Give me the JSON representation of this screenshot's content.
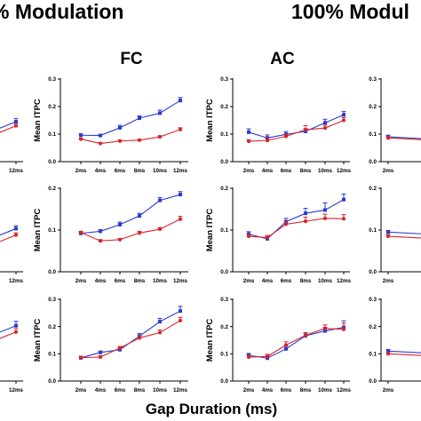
{
  "figure": {
    "headings": {
      "left": "% Modulation",
      "right": "100% Modul",
      "col_fc": "FC",
      "col_ac": "AC",
      "xlabel": "Gap Duration (ms)"
    }
  },
  "colors": {
    "blue": "#2a3bd0",
    "red": "#d6262b"
  },
  "chart_data": [
    {
      "type": "line",
      "panel": "FC-row1",
      "ylabel": "Mean ITPC",
      "categories": [
        "2ms",
        "4ms",
        "6ms",
        "8ms",
        "10ms",
        "12ms"
      ],
      "yticks": [
        0.0,
        0.1,
        0.2,
        0.3
      ],
      "ylim": [
        0,
        0.3
      ],
      "series": [
        {
          "color": "blue",
          "values": [
            0.096,
            0.095,
            0.123,
            0.158,
            0.176,
            0.222
          ],
          "err": [
            0.005,
            0.004,
            0.009,
            0.008,
            0.011,
            0.011
          ]
        },
        {
          "color": "red",
          "values": [
            0.082,
            0.066,
            0.075,
            0.078,
            0.09,
            0.117
          ],
          "err": [
            0.003,
            0.003,
            0.003,
            0.003,
            0.004,
            0.006
          ]
        }
      ]
    },
    {
      "type": "line",
      "panel": "AC-row1",
      "ylabel": "Mean ITPC",
      "categories": [
        "2ms",
        "4ms",
        "6ms",
        "8ms",
        "10ms",
        "12ms"
      ],
      "yticks": [
        0.0,
        0.1,
        0.2,
        0.3
      ],
      "ylim": [
        0,
        0.3
      ],
      "series": [
        {
          "color": "blue",
          "values": [
            0.107,
            0.086,
            0.099,
            0.11,
            0.141,
            0.17
          ],
          "err": [
            0.012,
            0.011,
            0.01,
            0.01,
            0.013,
            0.012
          ]
        },
        {
          "color": "red",
          "values": [
            0.074,
            0.077,
            0.092,
            0.116,
            0.122,
            0.15
          ],
          "err": [
            0.006,
            0.009,
            0.007,
            0.015,
            0.01,
            0.01
          ]
        }
      ]
    },
    {
      "type": "line",
      "panel": "FC-row2",
      "ylabel": "Mean ITPC",
      "categories": [
        "2ms",
        "4ms",
        "6ms",
        "8ms",
        "10ms",
        "12ms"
      ],
      "yticks": [
        0.0,
        0.1,
        0.2
      ],
      "ylim": [
        0,
        0.2
      ],
      "series": [
        {
          "color": "blue",
          "values": [
            0.092,
            0.097,
            0.113,
            0.134,
            0.171,
            0.185
          ],
          "err": [
            0.003,
            0.004,
            0.006,
            0.006,
            0.007,
            0.007
          ]
        },
        {
          "color": "red",
          "values": [
            0.094,
            0.074,
            0.077,
            0.093,
            0.102,
            0.126
          ],
          "err": [
            0.003,
            0.003,
            0.003,
            0.004,
            0.004,
            0.007
          ]
        }
      ]
    },
    {
      "type": "line",
      "panel": "AC-row2",
      "ylabel": "Mean ITPC",
      "categories": [
        "2ms",
        "4ms",
        "6ms",
        "8ms",
        "10ms",
        "12ms"
      ],
      "yticks": [
        0.0,
        0.1,
        0.2
      ],
      "ylim": [
        0,
        0.2
      ],
      "series": [
        {
          "color": "blue",
          "values": [
            0.09,
            0.079,
            0.12,
            0.14,
            0.148,
            0.173
          ],
          "err": [
            0.006,
            0.005,
            0.008,
            0.012,
            0.017,
            0.013
          ]
        },
        {
          "color": "red",
          "values": [
            0.085,
            0.082,
            0.114,
            0.121,
            0.128,
            0.127
          ],
          "err": [
            0.005,
            0.005,
            0.008,
            0.01,
            0.01,
            0.01
          ]
        }
      ]
    },
    {
      "type": "line",
      "panel": "FC-row3",
      "ylabel": "Mean ITPC",
      "categories": [
        "2ms",
        "4ms",
        "6ms",
        "8ms",
        "10ms",
        "12ms"
      ],
      "yticks": [
        0.0,
        0.1,
        0.2,
        0.3
      ],
      "ylim": [
        0,
        0.3
      ],
      "series": [
        {
          "color": "blue",
          "values": [
            0.085,
            0.105,
            0.115,
            0.165,
            0.218,
            0.257
          ],
          "err": [
            0.006,
            0.005,
            0.007,
            0.01,
            0.012,
            0.017
          ]
        },
        {
          "color": "red",
          "values": [
            0.086,
            0.088,
            0.121,
            0.158,
            0.178,
            0.222
          ],
          "err": [
            0.004,
            0.005,
            0.006,
            0.009,
            0.01,
            0.012
          ]
        }
      ]
    },
    {
      "type": "line",
      "panel": "AC-row3",
      "ylabel": "Mean ITPC",
      "categories": [
        "2ms",
        "4ms",
        "6ms",
        "8ms",
        "10ms",
        "12ms"
      ],
      "yticks": [
        0.0,
        0.1,
        0.2,
        0.3
      ],
      "ylim": [
        0,
        0.3
      ],
      "series": [
        {
          "color": "blue",
          "values": [
            0.094,
            0.084,
            0.118,
            0.166,
            0.184,
            0.197
          ],
          "err": [
            0.007,
            0.008,
            0.01,
            0.01,
            0.013,
            0.024
          ]
        },
        {
          "color": "red",
          "values": [
            0.088,
            0.09,
            0.132,
            0.168,
            0.193,
            0.19
          ],
          "err": [
            0.007,
            0.008,
            0.012,
            0.01,
            0.013,
            0.022
          ]
        }
      ]
    },
    {
      "type": "line",
      "panel": "left-partial-row1",
      "categories": [
        "12ms"
      ],
      "series": [
        {
          "color": "blue",
          "values": [
            0.145
          ],
          "err": [
            0.012
          ]
        },
        {
          "color": "red",
          "values": [
            0.13
          ],
          "err": [
            0.006
          ]
        }
      ]
    },
    {
      "type": "line",
      "panel": "left-partial-row2",
      "categories": [
        "12ms"
      ],
      "series": [
        {
          "color": "blue",
          "values": [
            0.155
          ],
          "err": [
            0.01
          ]
        },
        {
          "color": "red",
          "values": [
            0.132
          ],
          "err": [
            0.008
          ]
        }
      ]
    },
    {
      "type": "line",
      "panel": "left-partial-row3",
      "categories": [
        "12ms"
      ],
      "series": [
        {
          "color": "blue",
          "values": [
            0.203
          ],
          "err": [
            0.016
          ]
        },
        {
          "color": "red",
          "values": [
            0.18
          ],
          "err": [
            0.012
          ]
        }
      ]
    },
    {
      "type": "line",
      "panel": "right-partial-row1",
      "categories": [
        "2ms"
      ],
      "yticks": [
        0.0,
        0.1,
        0.2,
        0.3
      ],
      "ylim": [
        0,
        0.3
      ],
      "series": [
        {
          "color": "blue",
          "values": [
            0.09
          ],
          "err": [
            0.006
          ]
        },
        {
          "color": "red",
          "values": [
            0.086
          ],
          "err": [
            0.005
          ]
        }
      ]
    },
    {
      "type": "line",
      "panel": "right-partial-row2",
      "categories": [
        "2ms"
      ],
      "yticks": [
        0.0,
        0.1,
        0.2
      ],
      "ylim": [
        0,
        0.2
      ],
      "series": [
        {
          "color": "blue",
          "values": [
            0.095
          ],
          "err": [
            0.004
          ]
        },
        {
          "color": "red",
          "values": [
            0.085
          ],
          "err": [
            0.004
          ]
        }
      ]
    },
    {
      "type": "line",
      "panel": "right-partial-row3",
      "categories": [
        "2ms"
      ],
      "yticks": [
        0.0,
        0.1,
        0.2,
        0.3
      ],
      "ylim": [
        0,
        0.3
      ],
      "series": [
        {
          "color": "blue",
          "values": [
            0.11
          ],
          "err": [
            0.006
          ]
        },
        {
          "color": "red",
          "values": [
            0.1
          ],
          "err": [
            0.005
          ]
        }
      ]
    }
  ]
}
